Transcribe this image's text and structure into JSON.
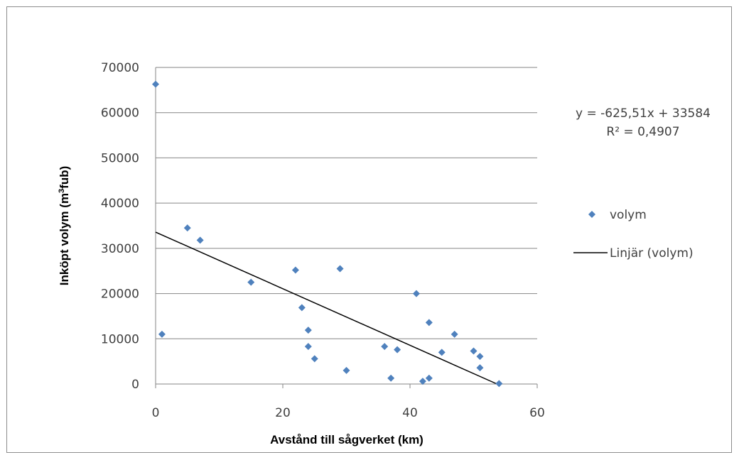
{
  "chart_data": {
    "type": "scatter",
    "xlabel": "Avstånd till sågverket (km)",
    "ylabel_main": "Inköpt volym (m",
    "ylabel_sup": "3",
    "ylabel_tail": "fub)",
    "xlim": [
      0,
      60
    ],
    "ylim": [
      0,
      70000
    ],
    "x_ticks": [
      "0",
      "20",
      "40",
      "60"
    ],
    "y_ticks": [
      "0",
      "10000",
      "20000",
      "30000",
      "40000",
      "50000",
      "60000",
      "70000"
    ],
    "grid": "horizontal",
    "legend_position": "right",
    "series": [
      {
        "name": "volym",
        "color": "#4f81bd",
        "marker": "diamond",
        "points": [
          [
            0,
            66300
          ],
          [
            1,
            11000
          ],
          [
            5,
            34500
          ],
          [
            7,
            31800
          ],
          [
            15,
            22500
          ],
          [
            22,
            25200
          ],
          [
            23,
            16900
          ],
          [
            24,
            11900
          ],
          [
            24,
            8300
          ],
          [
            25,
            5600
          ],
          [
            29,
            25500
          ],
          [
            30,
            3000
          ],
          [
            36,
            8300
          ],
          [
            37,
            1300
          ],
          [
            38,
            7600
          ],
          [
            41,
            20000
          ],
          [
            42,
            600
          ],
          [
            43,
            1300
          ],
          [
            43,
            13600
          ],
          [
            45,
            7000
          ],
          [
            47,
            11000
          ],
          [
            50,
            7300
          ],
          [
            51,
            6100
          ],
          [
            51,
            3600
          ],
          [
            54,
            100
          ]
        ]
      },
      {
        "name": "Linjär (volym)",
        "color": "#000000",
        "type": "trendline",
        "slope": -625.51,
        "intercept": 33584
      }
    ],
    "equation": "y = -625,51x + 33584",
    "r_squared_label": "R² = 0,4907"
  }
}
